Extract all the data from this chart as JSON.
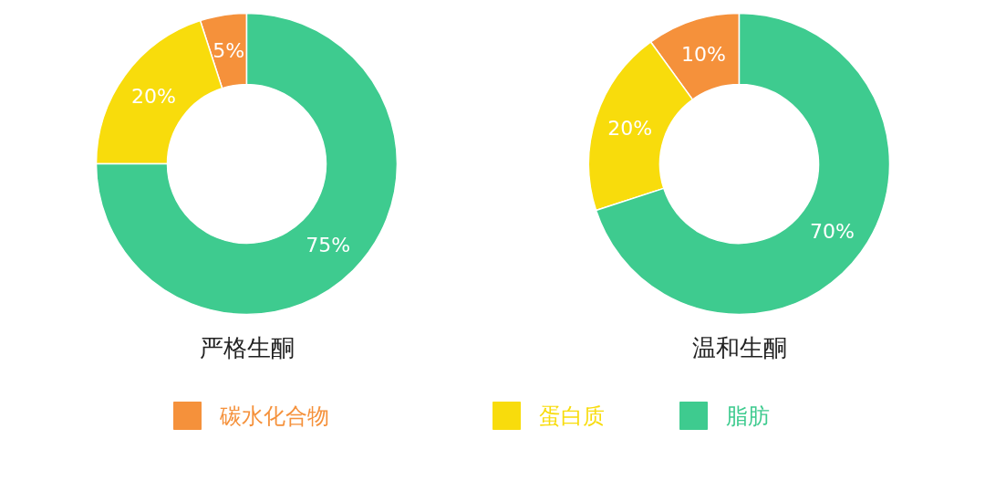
{
  "chart_data": [
    {
      "type": "donut",
      "title": "严格生酮",
      "categories": [
        "碳水化合物",
        "蛋白质",
        "脂肪"
      ],
      "values": [
        5,
        20,
        75
      ],
      "value_labels": [
        "5%",
        "20%",
        "75%"
      ],
      "colors": [
        "#f5913b",
        "#f8dc0c",
        "#3ecb8f"
      ],
      "legend": "bottom"
    },
    {
      "type": "donut",
      "title": "温和生酮",
      "categories": [
        null,
        null,
        null
      ],
      "values": [
        10,
        20,
        70
      ],
      "value_labels": [
        "10%",
        "20%",
        "70%"
      ],
      "colors": [
        "#f5913b",
        "#f8dc0c",
        "#3ecb8f"
      ]
    }
  ]
}
